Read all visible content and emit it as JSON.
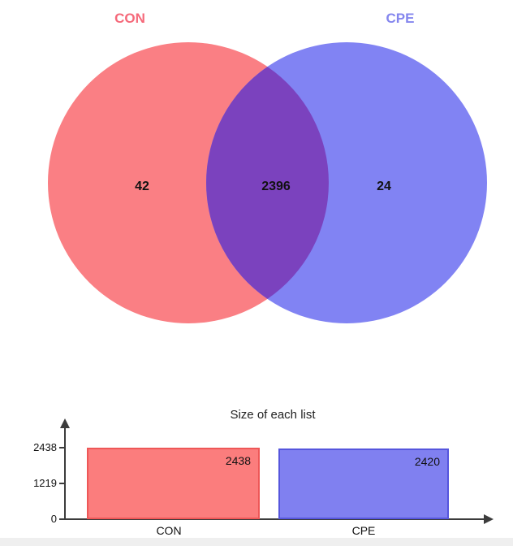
{
  "venn": {
    "sets": [
      {
        "label": "CON",
        "title_color": "#f5697a",
        "fill": "#fa7f84"
      },
      {
        "label": "CPE",
        "title_color": "#8486ee",
        "fill": "#8183f3"
      }
    ],
    "overlap_color": "#7b42be",
    "regions": [
      {
        "name": "con-only",
        "value": "42"
      },
      {
        "name": "intersection",
        "value": "2396"
      },
      {
        "name": "cpe-only",
        "value": "24"
      }
    ]
  },
  "chart_data": {
    "type": "bar",
    "title": "Size of each list",
    "categories": [
      "CON",
      "CPE"
    ],
    "values": [
      2438,
      2420
    ],
    "bar_labels": [
      "2438",
      "2420"
    ],
    "xlabel": "",
    "ylabel": "",
    "ylim": [
      0,
      2438
    ],
    "yticks": [
      0,
      1219,
      2438
    ],
    "grid": false,
    "legend": "none",
    "bar_colors": [
      "#fb7d7d",
      "#8080f0"
    ],
    "bar_border_colors": [
      "#ee5757",
      "#5656dd"
    ]
  }
}
